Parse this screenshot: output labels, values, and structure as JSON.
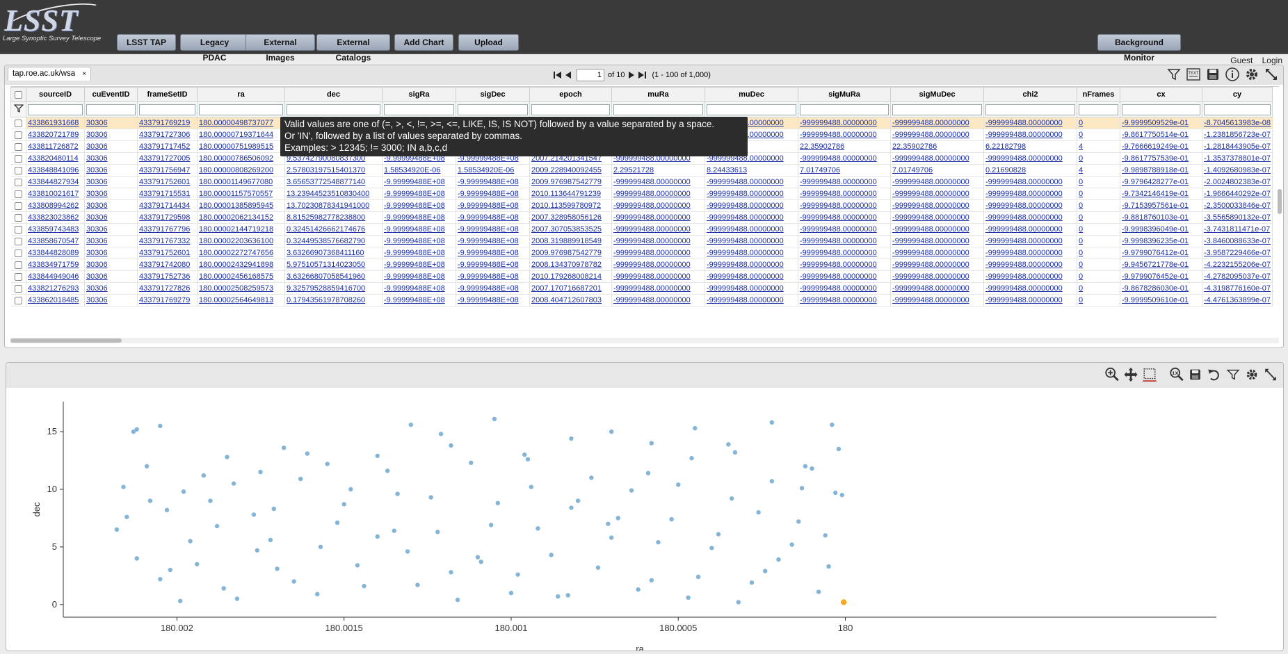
{
  "banner": {
    "logo_text": "LSST",
    "logo_subtitle": "Large Synoptic Survey Telescope",
    "menu": [
      "LSST TAP",
      "Legacy PDAC",
      "External Images",
      "External Catalogs",
      "Add Chart",
      "Upload"
    ],
    "background_monitor": "Background Monitor",
    "guest": "Guest",
    "login": "Login"
  },
  "table": {
    "tab_label": "tap.roe.ac.uk/wsa",
    "tab_close": "×",
    "pager": {
      "page": "1",
      "of_label": "of 10",
      "range_label": "(1 - 100 of 1,000)"
    },
    "columns": [
      "sourceID",
      "cuEventID",
      "frameSetID",
      "ra",
      "dec",
      "sigRa",
      "sigDec",
      "epoch",
      "muRa",
      "muDec",
      "sigMuRa",
      "sigMuDec",
      "chi2",
      "nFrames",
      "cx",
      "cy"
    ],
    "rows": [
      [
        "433861931668",
        "30306",
        "433791769219",
        "180.00000498737077",
        "",
        "",
        "",
        "",
        "",
        "-999999488.00000000",
        "-999999488.00000000",
        "-999999488.00000000",
        "-999999488.00000000",
        "0",
        "-9.9999509529e-01",
        "-8.7045613983e-08"
      ],
      [
        "433820721789",
        "30306",
        "433791727306",
        "180.00000719371644",
        "",
        "",
        "",
        "",
        "",
        "-999999488.00000000",
        "-999999488.00000000",
        "-999999488.00000000",
        "-999999488.00000000",
        "0",
        "-9.8617750514e-01",
        "-1.2381856723e-07"
      ],
      [
        "433811726872",
        "30306",
        "433791717452",
        "180.00000751989515",
        "",
        "",
        "",
        "",
        "",
        "8",
        "22.35902786",
        "22.35902786",
        "6.22182798",
        "4",
        "-9.7666619249e-01",
        "-1.2818443905e-07"
      ],
      [
        "433820480114",
        "30306",
        "433791727005",
        "180.00000786506092",
        "9.53742790080837300",
        "-9.99999488E+08",
        "-9.99999488E+08",
        "2007.214201341547",
        "-999999488.00000000",
        "-999999488.00000000",
        "-999999488.00000000",
        "-999999488.00000000",
        "-999999488.00000000",
        "0",
        "-9.8617757539e-01",
        "-1.3537378801e-07"
      ],
      [
        "433848841096",
        "30306",
        "433791756947",
        "180.00000808269200",
        "2.57803197515401370",
        "1.58534920E-06",
        "1.58534920E-06",
        "2009.228940092455",
        "2.29521728",
        "8.24433613",
        "7.01749706",
        "7.01749706",
        "0.21690828",
        "4",
        "-9.9898788918e-01",
        "-1.4092680983e-07"
      ],
      [
        "433844827934",
        "30306",
        "433791752601",
        "180.00001149677080",
        "3.65653772548877140",
        "-9.99999488E+08",
        "-9.99999488E+08",
        "2009.976987542779",
        "-999999488.00000000",
        "-999999488.00000000",
        "-999999488.00000000",
        "-999999488.00000000",
        "-999999488.00000000",
        "0",
        "-9.9796428277e-01",
        "-2.0024802383e-07"
      ],
      [
        "433810021617",
        "30306",
        "433791715531",
        "180.00001157570557",
        "13.23944523510830400",
        "-9.99999488E+08",
        "-9.99999488E+08",
        "2010.113644791239",
        "-999999488.00000000",
        "-999999488.00000000",
        "-999999488.00000000",
        "-999999488.00000000",
        "-999999488.00000000",
        "0",
        "-9.7342146419e-01",
        "-1.9666440292e-07"
      ],
      [
        "433808994262",
        "30306",
        "433791714434",
        "180.00001385895945",
        "13.70230878341941000",
        "-9.99999488E+08",
        "-9.99999488E+08",
        "2010.113599780972",
        "-999999488.00000000",
        "-999999488.00000000",
        "-999999488.00000000",
        "-999999488.00000000",
        "-999999488.00000000",
        "0",
        "-9.7153957561e-01",
        "-2.3500033846e-07"
      ],
      [
        "433823023862",
        "30306",
        "433791729598",
        "180.00002062134152",
        "8.81525982778238800",
        "-9.99999488E+08",
        "-9.99999488E+08",
        "2007.328958056126",
        "-999999488.00000000",
        "-999999488.00000000",
        "-999999488.00000000",
        "-999999488.00000000",
        "-999999488.00000000",
        "0",
        "-9.8818760103e-01",
        "-3.5565890132e-07"
      ],
      [
        "433859743483",
        "30306",
        "433791767796",
        "180.00002144719218",
        "0.32451426662174676",
        "-9.99999488E+08",
        "-9.99999488E+08",
        "2007.307053853525",
        "-999999488.00000000",
        "-999999488.00000000",
        "-999999488.00000000",
        "-999999488.00000000",
        "-999999488.00000000",
        "0",
        "-9.9998396049e-01",
        "-3.7431811471e-07"
      ],
      [
        "433858670547",
        "30306",
        "433791767332",
        "180.00002203636100",
        "0.32449538576682790",
        "-9.99999488E+08",
        "-9.99999488E+08",
        "2008.319889918549",
        "-999999488.00000000",
        "-999999488.00000000",
        "-999999488.00000000",
        "-999999488.00000000",
        "-999999488.00000000",
        "0",
        "-9.9998396235e-01",
        "-3.8460088633e-07"
      ],
      [
        "433844828089",
        "30306",
        "433791752601",
        "180.00002272747656",
        "3.63266907368411160",
        "-9.99999488E+08",
        "-9.99999488E+08",
        "2009.976987542779",
        "-999999488.00000000",
        "-999999488.00000000",
        "-999999488.00000000",
        "-999999488.00000000",
        "-999999488.00000000",
        "0",
        "-9.9799076412e-01",
        "-3.9587229466e-07"
      ],
      [
        "433834971759",
        "30306",
        "433791742080",
        "180.00002432941898",
        "5.97510571314023050",
        "-9.99999488E+08",
        "-9.99999488E+08",
        "2008.134370978782",
        "-999999488.00000000",
        "-999999488.00000000",
        "-999999488.00000000",
        "-999999488.00000000",
        "-999999488.00000000",
        "0",
        "-9.9456721778e-01",
        "-4.2232155206e-07"
      ],
      [
        "433844949046",
        "30306",
        "433791752736",
        "180.00002456168575",
        "3.63266807058541960",
        "-9.99999488E+08",
        "-9.99999488E+08",
        "2010.179268008214",
        "-999999488.00000000",
        "-999999488.00000000",
        "-999999488.00000000",
        "-999999488.00000000",
        "-999999488.00000000",
        "0",
        "-9.9799076452e-01",
        "-4.2782095037e-07"
      ],
      [
        "433821276293",
        "30306",
        "433791727826",
        "180.00002508259573",
        "9.32579528859416700",
        "-9.99999488E+08",
        "-9.99999488E+08",
        "2007.170716687201",
        "-999999488.00000000",
        "-999999488.00000000",
        "-999999488.00000000",
        "-999999488.00000000",
        "-999999488.00000000",
        "0",
        "-9.8678286030e-01",
        "-4.3198776160e-07"
      ],
      [
        "433862018485",
        "30306",
        "433791769279",
        "180.00002564649813",
        "0.17943561978708260",
        "-9.99999488E+08",
        "-9.99999488E+08",
        "2008.404712607803",
        "-999999488.00000000",
        "-999999488.00000000",
        "-999999488.00000000",
        "-999999488.00000000",
        "-999999488.00000000",
        "0",
        "-9.9999509610e-01",
        "-4.4761363899e-07"
      ]
    ],
    "tooltip": [
      "Valid values are one of (=, >, <, !=, >=, <=, LIKE, IS, IS NOT) followed by a value separated by a space.",
      "Or 'IN', followed by a list of values separated by commas.",
      "Examples:  > 12345; != 3000; IN a,b,c,d"
    ],
    "tools": [
      "filter-icon",
      "text-view-icon",
      "save-icon",
      "info-icon",
      "settings-icon",
      "expand-icon"
    ]
  },
  "chart": {
    "tools": [
      "zoom-in-icon",
      "pan-icon",
      "select-icon",
      "zoom-reset-icon",
      "save-icon",
      "restore-icon",
      "filter-icon",
      "settings-icon",
      "expand-icon"
    ],
    "colors": {
      "point": "#5b9bc8",
      "highlight": "#f5a623"
    },
    "chart_data": {
      "type": "scatter",
      "xlabel": "ra",
      "ylabel": "dec",
      "x_reversed": true,
      "xlim": [
        180.00234,
        179.99889
      ],
      "ylim": [
        -1.1,
        17.6
      ],
      "xticks": [
        {
          "value": 180.002,
          "label": "180.002"
        },
        {
          "value": 180.0015,
          "label": "180.0015"
        },
        {
          "value": 180.001,
          "label": "180.001"
        },
        {
          "value": 180.0005,
          "label": "180.0005"
        },
        {
          "value": 180.0,
          "label": "180"
        }
      ],
      "yticks": [
        {
          "value": 0,
          "label": "0"
        },
        {
          "value": 5,
          "label": "5"
        },
        {
          "value": 10,
          "label": "10"
        },
        {
          "value": 15,
          "label": "15"
        }
      ],
      "n_points": 1000,
      "highlight_point": {
        "ra": 180.00000498737077,
        "dec": 0.2
      },
      "points": [
        [
          180.00212,
          15.2
        ],
        [
          180.00213,
          15.0
        ],
        [
          180.00205,
          15.5
        ],
        [
          180.00216,
          10.2
        ],
        [
          180.00208,
          9.0
        ],
        [
          180.00198,
          9.8
        ],
        [
          180.00192,
          11.2
        ],
        [
          180.00185,
          12.8
        ],
        [
          180.00175,
          11.5
        ],
        [
          180.00168,
          13.6
        ],
        [
          180.00155,
          12.2
        ],
        [
          180.0014,
          12.9
        ],
        [
          180.0013,
          15.6
        ],
        [
          180.00118,
          13.8
        ],
        [
          180.00105,
          16.1
        ],
        [
          180.00095,
          12.6
        ],
        [
          180.00082,
          14.4
        ],
        [
          180.0007,
          15.0
        ],
        [
          180.00058,
          14.0
        ],
        [
          180.00045,
          15.3
        ],
        [
          180.00033,
          13.2
        ],
        [
          180.00022,
          15.8
        ],
        [
          180.00012,
          12.0
        ],
        [
          180.00004,
          15.6
        ],
        [
          180.00002,
          13.5
        ],
        [
          180.00218,
          6.5
        ],
        [
          180.00212,
          4.0
        ],
        [
          180.00205,
          2.2
        ],
        [
          180.00199,
          0.3
        ],
        [
          180.00194,
          3.5
        ],
        [
          180.00188,
          6.8
        ],
        [
          180.00182,
          0.5
        ],
        [
          180.00176,
          4.7
        ],
        [
          180.00171,
          8.3
        ],
        [
          180.00165,
          2.0
        ],
        [
          180.00158,
          0.9
        ],
        [
          180.00152,
          7.1
        ],
        [
          180.00146,
          3.4
        ],
        [
          180.0014,
          5.9
        ],
        [
          180.00134,
          9.6
        ],
        [
          180.00128,
          1.7
        ],
        [
          180.00122,
          6.3
        ],
        [
          180.00116,
          0.4
        ],
        [
          180.0011,
          4.1
        ],
        [
          180.00104,
          8.8
        ],
        [
          180.00098,
          2.6
        ],
        [
          180.00092,
          6.6
        ],
        [
          180.00086,
          0.7
        ],
        [
          180.0008,
          9.0
        ],
        [
          180.00074,
          3.2
        ],
        [
          180.00068,
          7.5
        ],
        [
          180.00062,
          1.3
        ],
        [
          180.00056,
          5.4
        ],
        [
          180.0005,
          10.4
        ],
        [
          180.00044,
          2.4
        ],
        [
          180.00038,
          6.1
        ],
        [
          180.00032,
          0.2
        ],
        [
          180.00026,
          8.0
        ],
        [
          180.0002,
          3.9
        ],
        [
          180.00014,
          7.2
        ],
        [
          180.00008,
          1.1
        ],
        [
          180.00003,
          9.7
        ],
        [
          180.00209,
          12.0
        ],
        [
          180.00203,
          8.2
        ],
        [
          180.00196,
          5.5
        ],
        [
          180.0019,
          9.0
        ],
        [
          180.00183,
          10.5
        ],
        [
          180.00177,
          7.8
        ],
        [
          180.0017,
          3.1
        ],
        [
          180.00163,
          10.9
        ],
        [
          180.00157,
          5.0
        ],
        [
          180.0015,
          8.7
        ],
        [
          180.00144,
          1.6
        ],
        [
          180.00137,
          11.6
        ],
        [
          180.00131,
          4.6
        ],
        [
          180.00124,
          9.3
        ],
        [
          180.00118,
          2.8
        ],
        [
          180.00112,
          12.3
        ],
        [
          180.00106,
          6.9
        ],
        [
          180.001,
          1.0
        ],
        [
          180.00094,
          10.2
        ],
        [
          180.00088,
          4.3
        ],
        [
          180.00082,
          8.4
        ],
        [
          180.00076,
          11.0
        ],
        [
          180.0007,
          5.8
        ],
        [
          180.00064,
          9.9
        ],
        [
          180.00058,
          2.1
        ],
        [
          180.00052,
          7.4
        ],
        [
          180.00046,
          12.7
        ],
        [
          180.0004,
          4.9
        ],
        [
          180.00034,
          9.2
        ],
        [
          180.00028,
          1.9
        ],
        [
          180.00022,
          10.7
        ],
        [
          180.00016,
          5.2
        ],
        [
          180.0001,
          11.8
        ],
        [
          180.00006,
          6.0
        ],
        [
          180.00001,
          9.5
        ],
        [
          180.00215,
          7.6
        ],
        [
          180.00202,
          3.0
        ],
        [
          180.00186,
          1.4
        ],
        [
          180.00172,
          5.6
        ],
        [
          180.00161,
          13.1
        ],
        [
          180.00148,
          10.0
        ],
        [
          180.00135,
          6.4
        ],
        [
          180.00121,
          14.8
        ],
        [
          180.00109,
          3.7
        ],
        [
          180.00096,
          13.0
        ],
        [
          180.00083,
          0.8
        ],
        [
          180.00071,
          7.0
        ],
        [
          180.00059,
          11.4
        ],
        [
          180.00047,
          0.6
        ],
        [
          180.00035,
          13.9
        ],
        [
          180.00024,
          2.9
        ],
        [
          180.00013,
          10.1
        ],
        [
          180.00005,
          3.3
        ]
      ]
    }
  }
}
